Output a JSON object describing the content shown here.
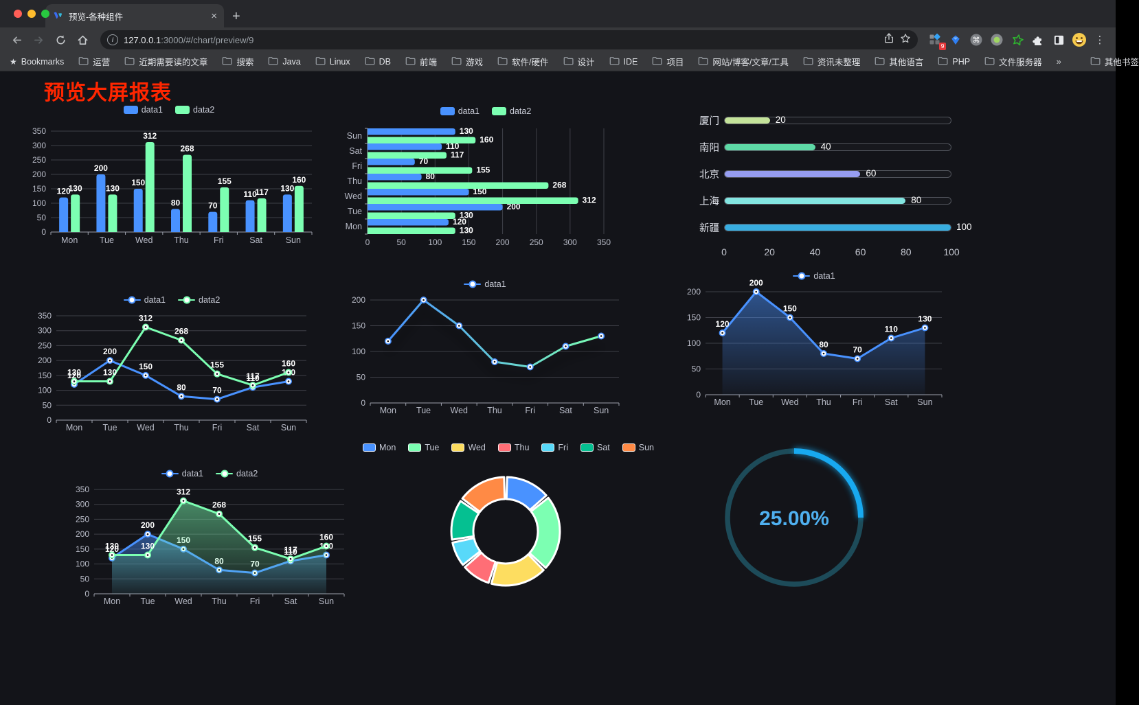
{
  "browser": {
    "tab": {
      "title": "预览-各种组件",
      "close_glyph": "×",
      "new_tab_glyph": "+"
    },
    "address": {
      "host": "127.0.0.1",
      "rest": ":3000/#/chart/preview/9"
    },
    "extensions_badge": "9",
    "cmd_glyph": "⌘",
    "menu_glyph": "⋮",
    "bookmarks": [
      {
        "icon": "star",
        "label": "Bookmarks"
      },
      {
        "icon": "folder",
        "label": "运营"
      },
      {
        "icon": "folder",
        "label": "近期需要读的文章"
      },
      {
        "icon": "folder",
        "label": "搜索"
      },
      {
        "icon": "folder",
        "label": "Java"
      },
      {
        "icon": "folder",
        "label": "Linux"
      },
      {
        "icon": "folder",
        "label": "DB"
      },
      {
        "icon": "folder",
        "label": "前端"
      },
      {
        "icon": "folder",
        "label": "游戏"
      },
      {
        "icon": "folder",
        "label": "软件/硬件"
      },
      {
        "icon": "folder",
        "label": "设计"
      },
      {
        "icon": "folder",
        "label": "IDE"
      },
      {
        "icon": "folder",
        "label": "项目"
      },
      {
        "icon": "folder",
        "label": "网站/博客/文章/工具"
      },
      {
        "icon": "folder",
        "label": "资讯未整理"
      },
      {
        "icon": "folder",
        "label": "其他语言"
      },
      {
        "icon": "folder",
        "label": "PHP"
      },
      {
        "icon": "folder",
        "label": "文件服务器"
      },
      {
        "icon": "chevron",
        "label": "»"
      },
      {
        "icon": "divider",
        "label": ""
      },
      {
        "icon": "folder",
        "label": "其他书签"
      }
    ]
  },
  "page": {
    "title": "预览大屏报表"
  },
  "colors": {
    "title_red": "#ff2600",
    "accent_blue": "#4992ff",
    "accent_green": "#7cffb2",
    "page_bg": "#131419",
    "chrome_bg": "#37383b",
    "tabstrip_bg": "#26272b",
    "url_pill_bg": "#1f2023",
    "axis_label": "#b8bbc7",
    "grid_line": "#3e3f47"
  },
  "chart_data": [
    {
      "id": "grouped-bar",
      "type": "bar",
      "categories": [
        "Mon",
        "Tue",
        "Wed",
        "Thu",
        "Fri",
        "Sat",
        "Sun"
      ],
      "series": [
        {
          "name": "data1",
          "color": "#4992ff",
          "values": [
            120,
            200,
            150,
            80,
            70,
            110,
            130
          ]
        },
        {
          "name": "data2",
          "color": "#7cffb2",
          "values": [
            130,
            130,
            312,
            268,
            155,
            117,
            160
          ]
        }
      ],
      "ylim": [
        0,
        350
      ],
      "yticks": [
        0,
        50,
        100,
        150,
        200,
        250,
        300,
        350
      ],
      "legend_position": "top",
      "value_labels": true,
      "grid": true
    },
    {
      "id": "horizontal-bar",
      "type": "bar-horizontal",
      "categories": [
        "Mon",
        "Tue",
        "Wed",
        "Thu",
        "Fri",
        "Sat",
        "Sun"
      ],
      "display_order_top_to_bottom": [
        "Sun",
        "Sat",
        "Fri",
        "Thu",
        "Wed",
        "Tue",
        "Mon"
      ],
      "series": [
        {
          "name": "data1",
          "color": "#4992ff",
          "values": [
            120,
            200,
            150,
            80,
            70,
            110,
            130
          ]
        },
        {
          "name": "data2",
          "color": "#7cffb2",
          "values": [
            130,
            130,
            312,
            268,
            155,
            117,
            160
          ]
        }
      ],
      "xlim": [
        0,
        350
      ],
      "xticks": [
        0,
        50,
        100,
        150,
        200,
        250,
        300,
        350
      ],
      "legend_position": "top",
      "value_labels": true,
      "grid": true
    },
    {
      "id": "city-progress",
      "type": "progress-bars",
      "max": 100,
      "ticks": [
        0,
        20,
        40,
        60,
        80,
        100
      ],
      "items": [
        {
          "label": "厦门",
          "value": 20,
          "color": "#c4e39a"
        },
        {
          "label": "南阳",
          "value": 40,
          "color": "#5ed9a6"
        },
        {
          "label": "北京",
          "value": 60,
          "color": "#969df0"
        },
        {
          "label": "上海",
          "value": 80,
          "color": "#83e5e1"
        },
        {
          "label": "新疆",
          "value": 100,
          "color": "#38ade0"
        }
      ]
    },
    {
      "id": "line-two",
      "type": "line",
      "categories": [
        "Mon",
        "Tue",
        "Wed",
        "Thu",
        "Fri",
        "Sat",
        "Sun"
      ],
      "series": [
        {
          "name": "data1",
          "color": "#4992ff",
          "values": [
            120,
            200,
            150,
            80,
            70,
            110,
            130
          ]
        },
        {
          "name": "data2",
          "color": "#7cffb2",
          "values": [
            130,
            130,
            312,
            268,
            155,
            117,
            160
          ]
        }
      ],
      "ylim": [
        0,
        350
      ],
      "yticks": [
        0,
        50,
        100,
        150,
        200,
        250,
        300,
        350
      ],
      "legend_position": "top",
      "value_labels": true,
      "markers": true
    },
    {
      "id": "line-gradient",
      "type": "line",
      "categories": [
        "Mon",
        "Tue",
        "Wed",
        "Thu",
        "Fri",
        "Sat",
        "Sun"
      ],
      "series": [
        {
          "name": "data1",
          "color": "#4992ff",
          "gradient": [
            "#4992ff",
            "#7cffb2"
          ],
          "values": [
            120,
            200,
            150,
            80,
            70,
            110,
            130
          ]
        }
      ],
      "ylim": [
        0,
        200
      ],
      "yticks": [
        0,
        50,
        100,
        150,
        200
      ],
      "legend_position": "top",
      "value_labels": false,
      "markers": true,
      "shadow": true
    },
    {
      "id": "area-one",
      "type": "area",
      "categories": [
        "Mon",
        "Tue",
        "Wed",
        "Thu",
        "Fri",
        "Sat",
        "Sun"
      ],
      "series": [
        {
          "name": "data1",
          "color": "#4992ff",
          "area": true,
          "values": [
            120,
            200,
            150,
            80,
            70,
            110,
            130
          ]
        }
      ],
      "ylim": [
        0,
        200
      ],
      "yticks": [
        0,
        50,
        100,
        150,
        200
      ],
      "legend_position": "top",
      "value_labels": true,
      "markers": true
    },
    {
      "id": "area-two",
      "type": "area",
      "categories": [
        "Mon",
        "Tue",
        "Wed",
        "Thu",
        "Fri",
        "Sat",
        "Sun"
      ],
      "series": [
        {
          "name": "data1",
          "color": "#4992ff",
          "area": true,
          "values": [
            120,
            200,
            150,
            80,
            70,
            110,
            130
          ]
        },
        {
          "name": "data2",
          "color": "#7cffb2",
          "area": true,
          "values": [
            130,
            130,
            312,
            268,
            155,
            117,
            160
          ]
        }
      ],
      "ylim": [
        0,
        350
      ],
      "yticks": [
        0,
        50,
        100,
        150,
        200,
        250,
        300,
        350
      ],
      "legend_position": "top",
      "value_labels": true,
      "markers": true
    },
    {
      "id": "donut",
      "type": "pie",
      "inner_radius_ratio": 0.59,
      "categories": [
        "Mon",
        "Tue",
        "Wed",
        "Thu",
        "Fri",
        "Sat",
        "Sun"
      ],
      "values": [
        120,
        200,
        150,
        80,
        70,
        110,
        130
      ],
      "colors": [
        "#4992ff",
        "#7cffb2",
        "#fddd60",
        "#ff6e76",
        "#58d9f9",
        "#05c091",
        "#ff8a45"
      ],
      "border_color": "#ffffff",
      "legend_position": "top"
    },
    {
      "id": "gauge-progress",
      "type": "gauge",
      "value": 25,
      "label": "25.00%",
      "color": "#18a9f0",
      "track_color": "#1d4b59",
      "text_color": "#4fb0f0"
    }
  ]
}
